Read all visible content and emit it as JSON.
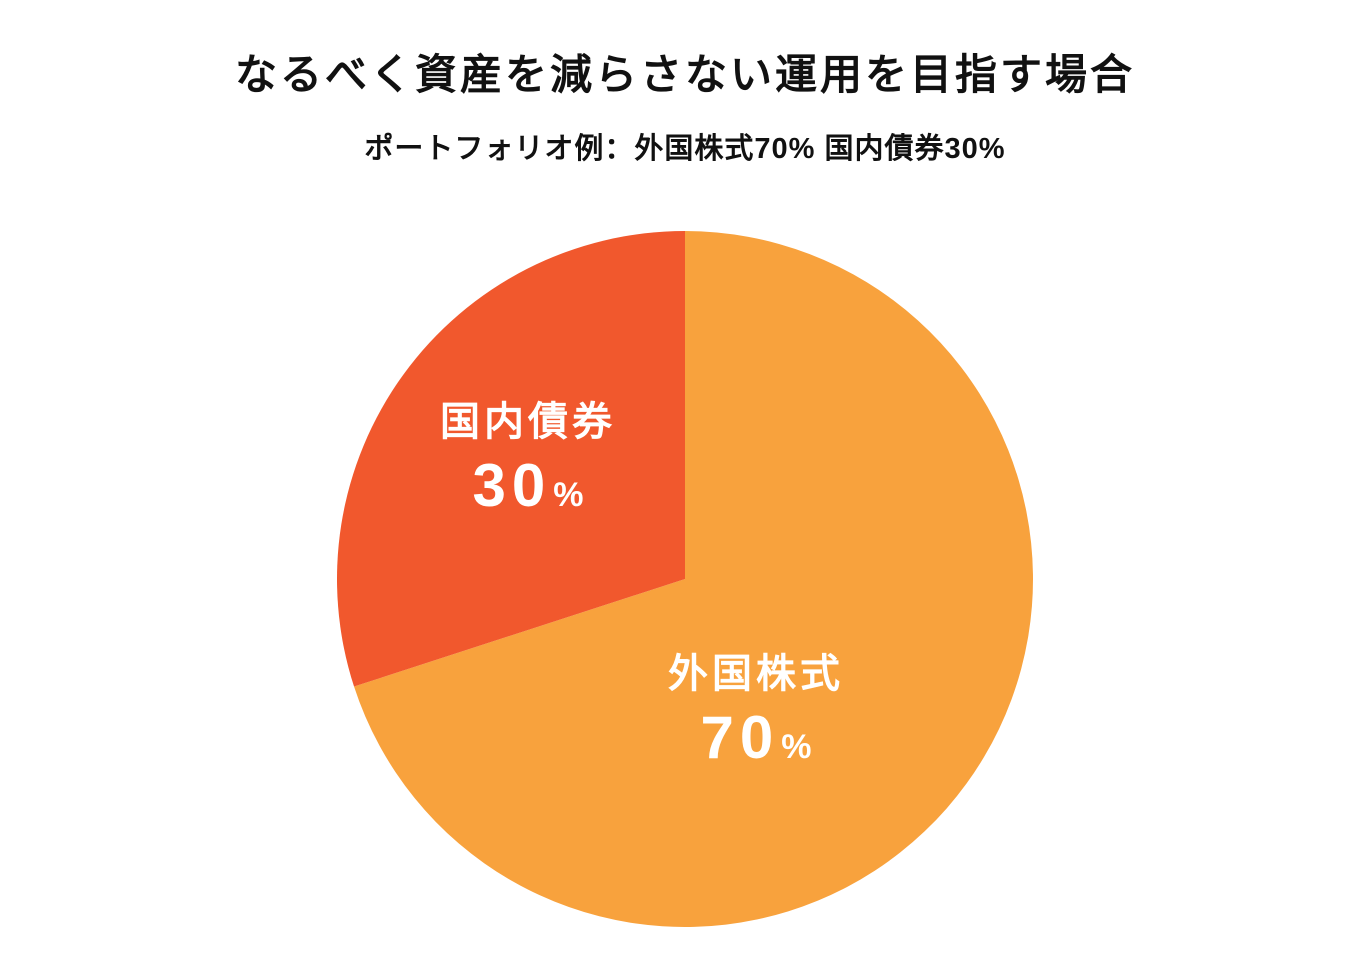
{
  "title": "なるべく資産を減らさない運用を目指す場合",
  "subtitle": "ポートフォリオ例：外国株式70% 国内債券30%",
  "colors": {
    "background": "#FFFFFF",
    "title_text": "#111111",
    "slice_label_text": "#FFFFFF",
    "foreign_stocks": "#F8A23D",
    "domestic_bonds": "#F1582D"
  },
  "chart_data": {
    "type": "pie",
    "title": "なるべく資産を減らさない運用を目指す場合",
    "subtitle": "ポートフォリオ例：外国株式70% 国内債券30%",
    "start_angle_deg": 0,
    "direction": "clockwise",
    "legend_position": "none",
    "slices": [
      {
        "id": "foreign-stocks",
        "label": "外国株式",
        "value": 70,
        "value_label": "70",
        "percent_sign": "%",
        "color": "#F8A23D"
      },
      {
        "id": "domestic-bonds",
        "label": "国内債券",
        "value": 30,
        "value_label": "30",
        "percent_sign": "%",
        "color": "#F1582D"
      }
    ]
  }
}
